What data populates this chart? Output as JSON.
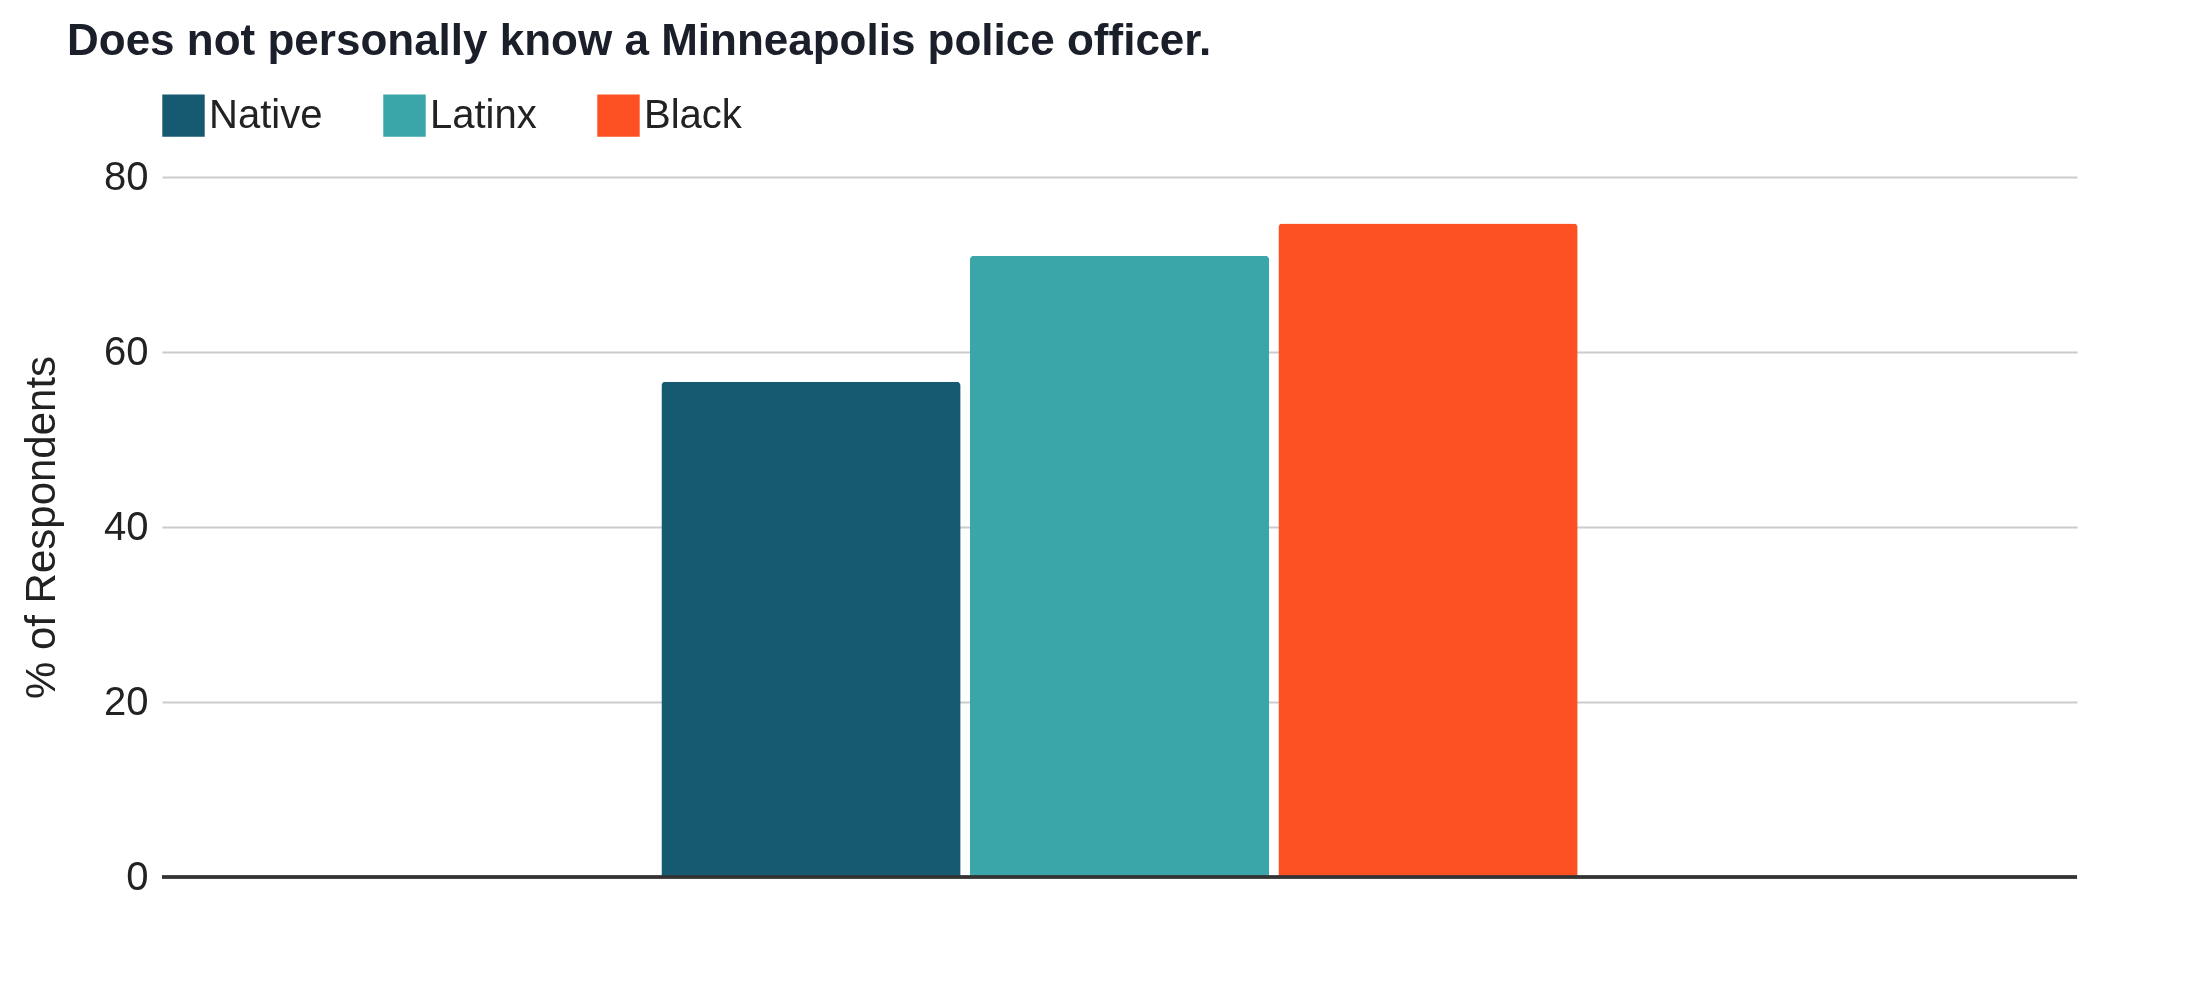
{
  "chart_data": {
    "type": "bar",
    "title": "Does not personally know a Minneapolis police officer.",
    "ylabel": "% of Respondents",
    "categories": [
      null
    ],
    "series": [
      {
        "name": "Native",
        "color": "#165a72",
        "values": [
          56.6
        ]
      },
      {
        "name": "Latinx",
        "color": "#3aa6a9",
        "values": [
          71
        ]
      },
      {
        "name": "Black",
        "color": "#fd5124",
        "values": [
          74.7
        ]
      }
    ],
    "ylim": [
      0,
      80
    ],
    "yticks": [
      0,
      20,
      40,
      60,
      80
    ],
    "grid": "y",
    "legend": "top",
    "tick_labels": "y"
  }
}
